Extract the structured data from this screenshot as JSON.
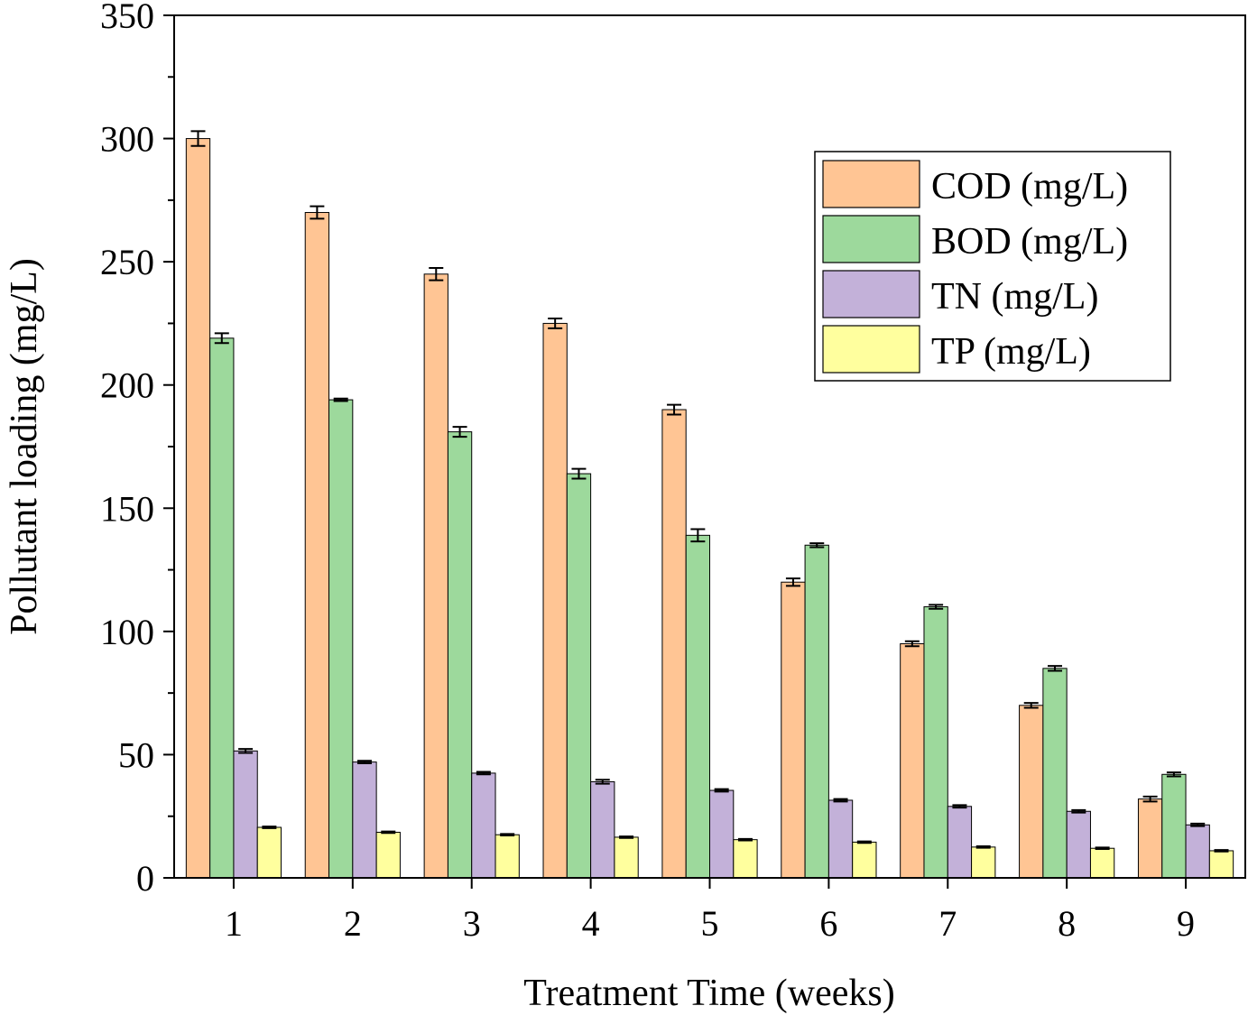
{
  "chart_data": {
    "type": "bar",
    "title": "",
    "xlabel": "Treatment Time (weeks)",
    "ylabel": "Pollutant loading (mg/L)",
    "ylim": [
      0,
      350
    ],
    "yticks": [
      0,
      50,
      100,
      150,
      200,
      250,
      300,
      350
    ],
    "categories": [
      "1",
      "2",
      "3",
      "4",
      "5",
      "6",
      "7",
      "8",
      "9"
    ],
    "grid": false,
    "legend_position": "top-right",
    "series": [
      {
        "name": "COD (mg/L)",
        "color": "#FFC594",
        "values": [
          300,
          270,
          245,
          225,
          190,
          120,
          95,
          70,
          32
        ],
        "errors": [
          3,
          2.5,
          2.5,
          2,
          2,
          1.5,
          1,
          1,
          1
        ]
      },
      {
        "name": "BOD (mg/L)",
        "color": "#9DD99C",
        "values": [
          219,
          194,
          181,
          164,
          139,
          135,
          110,
          85,
          42
        ],
        "errors": [
          2,
          0.5,
          2,
          2,
          2.5,
          0.8,
          0.8,
          1,
          0.8
        ]
      },
      {
        "name": "TN (mg/L)",
        "color": "#C3B1D9",
        "values": [
          51.5,
          47,
          42.5,
          39,
          35.5,
          31.5,
          29,
          27,
          21.5
        ],
        "errors": [
          0.8,
          0.5,
          0.5,
          0.8,
          0.5,
          0.5,
          0.5,
          0.5,
          0.5
        ]
      },
      {
        "name": "TP (mg/L)",
        "color": "#FFFF9E",
        "values": [
          20.5,
          18.5,
          17.5,
          16.5,
          15.5,
          14.5,
          12.5,
          12,
          11
        ],
        "errors": [
          0.3,
          0.3,
          0.3,
          0.3,
          0.3,
          0.3,
          0.3,
          0.3,
          0.3
        ]
      }
    ]
  }
}
